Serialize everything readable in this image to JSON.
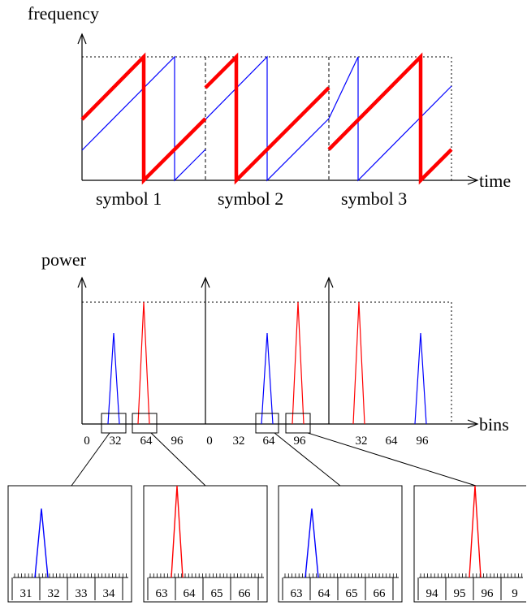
{
  "colors": {
    "chirp_a": "#ff0000",
    "chirp_b": "#0000ff",
    "axis": "#000000"
  },
  "top_chart": {
    "y_label": "frequency",
    "x_label": "time",
    "symbol_labels": [
      "symbol 1",
      "symbol 2",
      "symbol 3"
    ]
  },
  "mid_chart": {
    "y_label": "power",
    "x_label": "bins",
    "tick_labels": [
      "0",
      "32",
      "64",
      "96",
      "0",
      "32",
      "64",
      "96"
    ],
    "peaks": {
      "symbol_1": [
        {
          "color": "blue",
          "bin": 32,
          "level": 0.75
        },
        {
          "color": "red",
          "bin": 64,
          "level": 1.0
        }
      ],
      "symbol_2": [
        {
          "color": "blue",
          "bin": 64,
          "level": 0.75
        },
        {
          "color": "red",
          "bin": 96,
          "level": 1.0
        }
      ],
      "symbol_3": [
        {
          "color": "red",
          "bin": 32,
          "level": 1.0
        },
        {
          "color": "blue",
          "bin": 96,
          "level": 0.75
        }
      ]
    }
  },
  "zoom_panels": [
    {
      "ticks": [
        "31",
        "32",
        "33",
        "34"
      ],
      "peak_color": "blue",
      "peak_bin": 32,
      "level": 0.75
    },
    {
      "ticks": [
        "63",
        "64",
        "65",
        "66"
      ],
      "peak_color": "red",
      "peak_bin": 64,
      "level": 1.0
    },
    {
      "ticks": [
        "63",
        "64",
        "65",
        "66"
      ],
      "peak_color": "blue",
      "peak_bin": 64,
      "level": 0.75
    },
    {
      "ticks": [
        "94",
        "95",
        "96",
        "9"
      ],
      "peak_color": "red",
      "peak_bin": 96,
      "level": 1.0
    }
  ]
}
